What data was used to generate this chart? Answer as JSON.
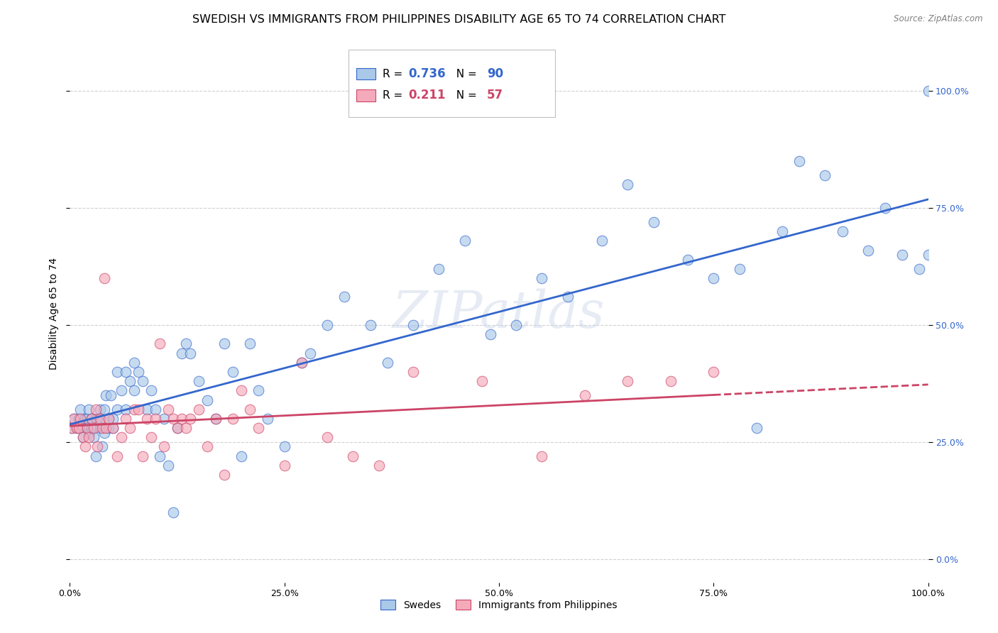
{
  "title": "SWEDISH VS IMMIGRANTS FROM PHILIPPINES DISABILITY AGE 65 TO 74 CORRELATION CHART",
  "source": "Source: ZipAtlas.com",
  "ylabel": "Disability Age 65 to 74",
  "background_color": "#ffffff",
  "grid_color": "#cccccc",
  "swedes_color": "#aac8e8",
  "immigrants_color": "#f5aabb",
  "swedes_line_color": "#3366cc",
  "immigrants_line_color": "#cc4466",
  "R_swedes": 0.736,
  "N_swedes": 90,
  "R_immigrants": 0.211,
  "N_immigrants": 57,
  "xlim": [
    0.0,
    100.0
  ],
  "ylim": [
    -5.0,
    110.0
  ],
  "swedes_x": [
    0.2,
    0.5,
    0.8,
    1.0,
    1.2,
    1.5,
    1.5,
    1.8,
    2.0,
    2.0,
    2.2,
    2.3,
    2.5,
    2.5,
    2.8,
    3.0,
    3.0,
    3.2,
    3.5,
    3.5,
    3.8,
    4.0,
    4.0,
    4.2,
    4.5,
    4.5,
    4.8,
    5.0,
    5.0,
    5.5,
    5.5,
    6.0,
    6.5,
    6.5,
    7.0,
    7.5,
    7.5,
    8.0,
    8.5,
    9.0,
    9.5,
    10.0,
    10.5,
    11.0,
    11.5,
    12.0,
    12.5,
    13.0,
    13.5,
    14.0,
    15.0,
    16.0,
    17.0,
    18.0,
    19.0,
    20.0,
    21.0,
    22.0,
    23.0,
    25.0,
    27.0,
    28.0,
    30.0,
    32.0,
    35.0,
    37.0,
    40.0,
    43.0,
    46.0,
    49.0,
    52.0,
    55.0,
    58.0,
    62.0,
    65.0,
    68.0,
    72.0,
    75.0,
    78.0,
    80.0,
    83.0,
    85.0,
    88.0,
    90.0,
    93.0,
    95.0,
    97.0,
    99.0,
    100.0,
    100.0
  ],
  "swedes_y": [
    28.0,
    30.0,
    28.0,
    30.0,
    32.0,
    28.0,
    26.0,
    30.0,
    28.0,
    30.0,
    32.0,
    27.0,
    30.0,
    28.0,
    26.0,
    22.0,
    30.0,
    30.0,
    32.0,
    28.0,
    24.0,
    32.0,
    27.0,
    35.0,
    30.0,
    28.0,
    35.0,
    30.0,
    28.0,
    40.0,
    32.0,
    36.0,
    40.0,
    32.0,
    38.0,
    42.0,
    36.0,
    40.0,
    38.0,
    32.0,
    36.0,
    32.0,
    22.0,
    30.0,
    20.0,
    10.0,
    28.0,
    44.0,
    46.0,
    44.0,
    38.0,
    34.0,
    30.0,
    46.0,
    40.0,
    22.0,
    46.0,
    36.0,
    30.0,
    24.0,
    42.0,
    44.0,
    50.0,
    56.0,
    50.0,
    42.0,
    50.0,
    62.0,
    68.0,
    48.0,
    50.0,
    60.0,
    56.0,
    68.0,
    80.0,
    72.0,
    64.0,
    60.0,
    62.0,
    28.0,
    70.0,
    85.0,
    82.0,
    70.0,
    66.0,
    75.0,
    65.0,
    62.0,
    65.0,
    100.0
  ],
  "immigrants_x": [
    0.2,
    0.5,
    0.8,
    1.0,
    1.2,
    1.5,
    1.8,
    2.0,
    2.2,
    2.5,
    2.8,
    3.0,
    3.2,
    3.5,
    3.8,
    4.0,
    4.2,
    4.5,
    5.0,
    5.5,
    6.0,
    6.5,
    7.0,
    7.5,
    8.0,
    8.5,
    9.0,
    9.5,
    10.0,
    10.5,
    11.0,
    11.5,
    12.0,
    12.5,
    13.0,
    13.5,
    14.0,
    15.0,
    16.0,
    17.0,
    18.0,
    19.0,
    20.0,
    21.0,
    22.0,
    25.0,
    27.0,
    30.0,
    33.0,
    36.0,
    40.0,
    48.0,
    55.0,
    60.0,
    65.0,
    70.0,
    75.0
  ],
  "immigrants_y": [
    28.0,
    30.0,
    28.0,
    28.0,
    30.0,
    26.0,
    24.0,
    28.0,
    26.0,
    30.0,
    28.0,
    32.0,
    24.0,
    30.0,
    28.0,
    60.0,
    28.0,
    30.0,
    28.0,
    22.0,
    26.0,
    30.0,
    28.0,
    32.0,
    32.0,
    22.0,
    30.0,
    26.0,
    30.0,
    46.0,
    24.0,
    32.0,
    30.0,
    28.0,
    30.0,
    28.0,
    30.0,
    32.0,
    24.0,
    30.0,
    18.0,
    30.0,
    36.0,
    32.0,
    28.0,
    20.0,
    42.0,
    26.0,
    22.0,
    20.0,
    40.0,
    38.0,
    22.0,
    35.0,
    38.0,
    38.0,
    40.0
  ],
  "watermark": "ZIPatlas",
  "title_fontsize": 11.5,
  "axis_label_fontsize": 10,
  "tick_fontsize": 9,
  "legend_fontsize": 12
}
